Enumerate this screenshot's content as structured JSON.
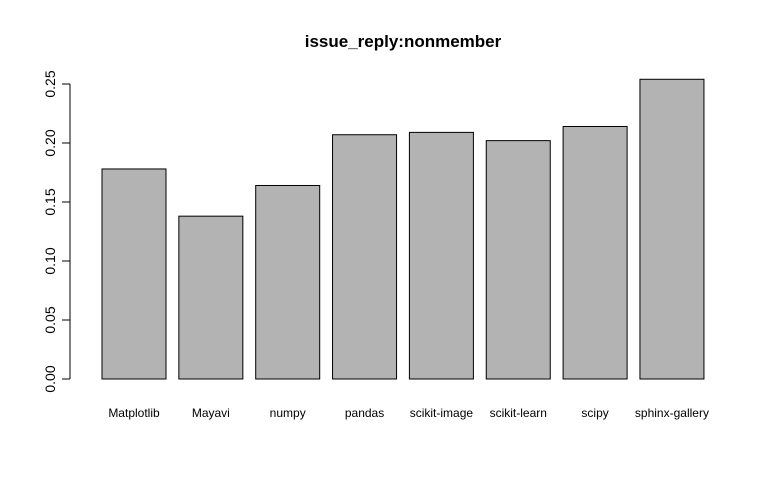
{
  "chart_data": {
    "type": "bar",
    "title": "issue_reply:nonmember",
    "xlabel": "",
    "ylabel": "",
    "categories": [
      "Matplotlib",
      "Mayavi",
      "numpy",
      "pandas",
      "scikit-image",
      "scikit-learn",
      "scipy",
      "sphinx-gallery"
    ],
    "values": [
      0.178,
      0.138,
      0.164,
      0.207,
      0.209,
      0.202,
      0.214,
      0.254
    ],
    "yticks": [
      0.0,
      0.05,
      0.1,
      0.15,
      0.2,
      0.25
    ],
    "ytick_labels": [
      "0.00",
      "0.05",
      "0.10",
      "0.15",
      "0.20",
      "0.25"
    ],
    "ylim": [
      0,
      0.25
    ],
    "grid": false,
    "bar_color": "#b3b3b3",
    "edge_color": "#000000"
  }
}
